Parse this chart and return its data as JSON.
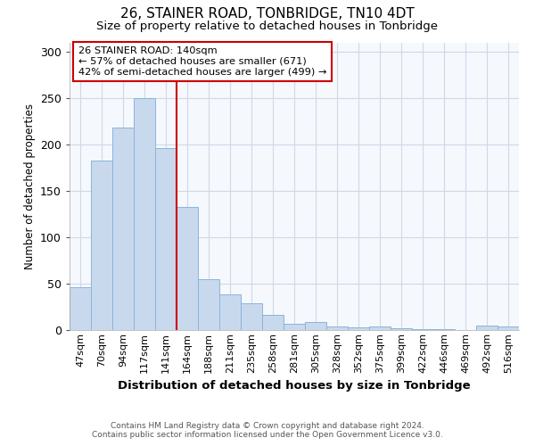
{
  "title": "26, STAINER ROAD, TONBRIDGE, TN10 4DT",
  "subtitle": "Size of property relative to detached houses in Tonbridge",
  "xlabel": "Distribution of detached houses by size in Tonbridge",
  "ylabel": "Number of detached properties",
  "bar_color": "#c8d9ee",
  "bar_edge_color": "#8ab4d9",
  "background_color": "#ffffff",
  "plot_bg_color": "#f5f8fd",
  "grid_color": "#d0d8e8",
  "categories": [
    "47sqm",
    "70sqm",
    "94sqm",
    "117sqm",
    "141sqm",
    "164sqm",
    "188sqm",
    "211sqm",
    "235sqm",
    "258sqm",
    "281sqm",
    "305sqm",
    "328sqm",
    "352sqm",
    "375sqm",
    "399sqm",
    "422sqm",
    "446sqm",
    "469sqm",
    "492sqm",
    "516sqm"
  ],
  "values": [
    46,
    183,
    218,
    250,
    196,
    133,
    55,
    38,
    29,
    16,
    7,
    9,
    4,
    3,
    4,
    2,
    1,
    1,
    0,
    5,
    4
  ],
  "ylim": [
    0,
    310
  ],
  "yticks": [
    0,
    50,
    100,
    150,
    200,
    250,
    300
  ],
  "vline_index": 4,
  "marker_label": "26 STAINER ROAD: 140sqm",
  "annotation_line1": "← 57% of detached houses are smaller (671)",
  "annotation_line2": "42% of semi-detached houses are larger (499) →",
  "vline_color": "#cc0000",
  "annotation_box_color": "#ffffff",
  "annotation_box_edge": "#cc0000",
  "footnote1": "Contains HM Land Registry data © Crown copyright and database right 2024.",
  "footnote2": "Contains public sector information licensed under the Open Government Licence v3.0."
}
